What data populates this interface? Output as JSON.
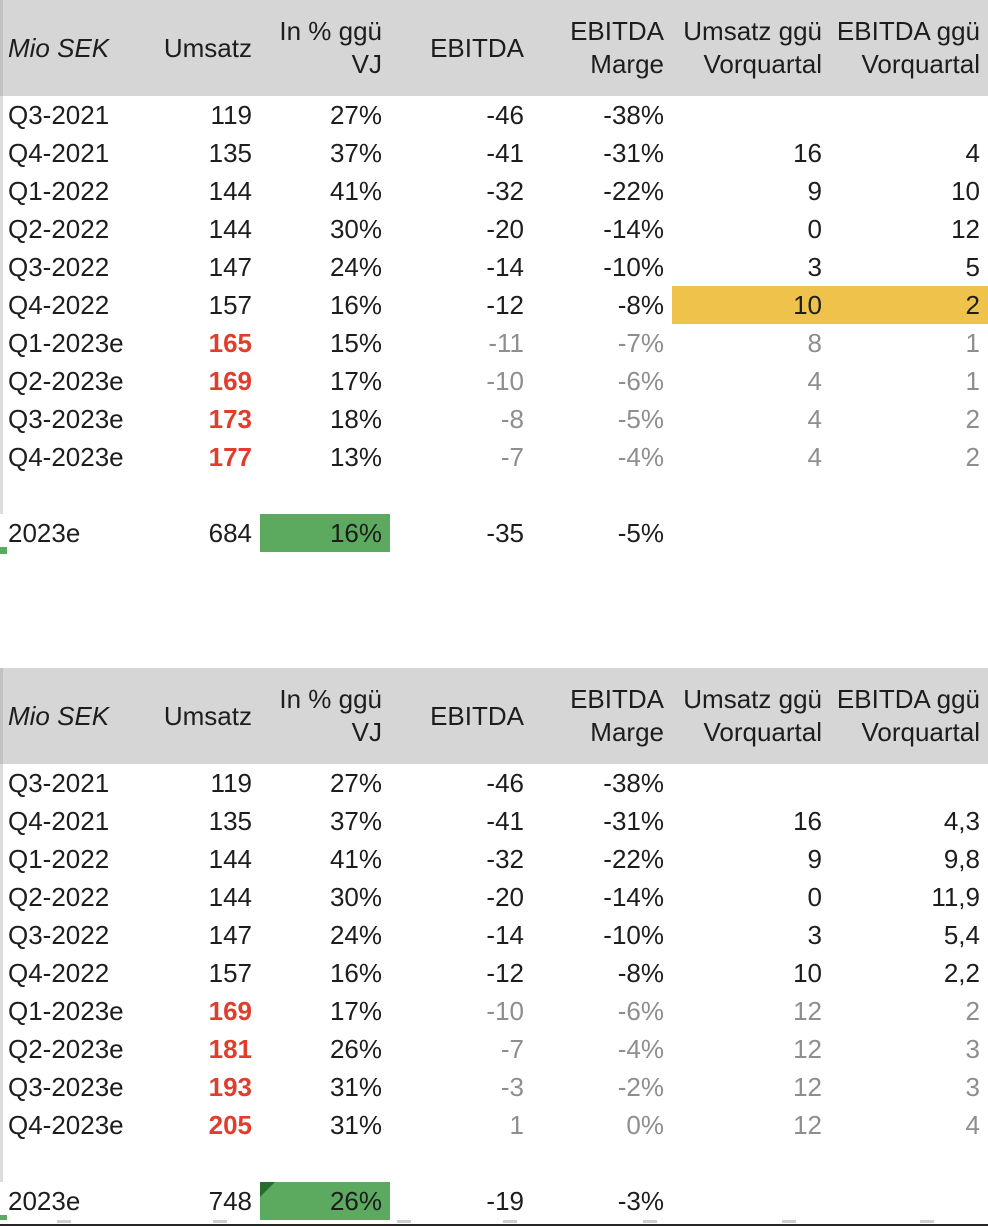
{
  "colors": {
    "header_bg": "#d6d6d6",
    "text": "#1d1d1d",
    "forecast_red": "#e03e2d",
    "forecast_gray": "#8e8e8e",
    "highlight_yellow": "#efc24b",
    "highlight_green": "#5baa5f",
    "triangle_dark_green": "#276b2e"
  },
  "header": {
    "columns": [
      {
        "id": "mio-sek",
        "lines": [
          "Mio SEK"
        ],
        "italic": true
      },
      {
        "id": "umsatz",
        "lines": [
          "Umsatz"
        ]
      },
      {
        "id": "pct-vj",
        "lines": [
          "In % ggü",
          "VJ"
        ]
      },
      {
        "id": "ebitda",
        "lines": [
          "EBITDA"
        ]
      },
      {
        "id": "ebitda-marge",
        "lines": [
          "EBITDA",
          "Marge"
        ]
      },
      {
        "id": "umsatz-qoq",
        "lines": [
          "Umsatz ggü",
          "Vorquartal"
        ]
      },
      {
        "id": "ebitda-qoq",
        "lines": [
          "EBITDA ggü",
          "Vorquartal"
        ]
      }
    ]
  },
  "tables": [
    {
      "rows": [
        {
          "cells": [
            "Q3-2021",
            "119",
            "27%",
            "-46",
            "-38%",
            "",
            ""
          ],
          "styles": [
            "",
            "",
            "",
            "",
            "",
            "",
            ""
          ]
        },
        {
          "cells": [
            "Q4-2021",
            "135",
            "37%",
            "-41",
            "-31%",
            "16",
            "4"
          ],
          "styles": [
            "",
            "",
            "",
            "",
            "",
            "",
            ""
          ]
        },
        {
          "cells": [
            "Q1-2022",
            "144",
            "41%",
            "-32",
            "-22%",
            "9",
            "10"
          ],
          "styles": [
            "",
            "",
            "",
            "",
            "",
            "",
            ""
          ]
        },
        {
          "cells": [
            "Q2-2022",
            "144",
            "30%",
            "-20",
            "-14%",
            "0",
            "12"
          ],
          "styles": [
            "",
            "",
            "",
            "",
            "",
            "",
            ""
          ]
        },
        {
          "cells": [
            "Q3-2022",
            "147",
            "24%",
            "-14",
            "-10%",
            "3",
            "5"
          ],
          "styles": [
            "",
            "",
            "",
            "",
            "",
            "",
            ""
          ]
        },
        {
          "cells": [
            "Q4-2022",
            "157",
            "16%",
            "-12",
            "-8%",
            "10",
            "2"
          ],
          "styles": [
            "",
            "",
            "",
            "",
            "",
            "yellow",
            "yellow"
          ]
        },
        {
          "cells": [
            "Q1-2023e",
            "165",
            "15%",
            "-11",
            "-7%",
            "8",
            "1"
          ],
          "styles": [
            "",
            "red",
            "",
            "gray",
            "gray",
            "gray",
            "gray"
          ]
        },
        {
          "cells": [
            "Q2-2023e",
            "169",
            "17%",
            "-10",
            "-6%",
            "4",
            "1"
          ],
          "styles": [
            "",
            "red",
            "",
            "gray",
            "gray",
            "gray",
            "gray"
          ]
        },
        {
          "cells": [
            "Q3-2023e",
            "173",
            "18%",
            "-8",
            "-5%",
            "4",
            "2"
          ],
          "styles": [
            "",
            "red",
            "",
            "gray",
            "gray",
            "gray",
            "gray"
          ]
        },
        {
          "cells": [
            "Q4-2023e",
            "177",
            "13%",
            "-7",
            "-4%",
            "4",
            "2"
          ],
          "styles": [
            "",
            "red",
            "",
            "gray",
            "gray",
            "gray",
            "gray"
          ]
        }
      ],
      "total": {
        "cells": [
          "2023e",
          "684",
          "16%",
          "-35",
          "-5%",
          "",
          ""
        ],
        "styles": [
          "",
          "",
          "green",
          "",
          "",
          "",
          ""
        ]
      }
    },
    {
      "rows": [
        {
          "cells": [
            "Q3-2021",
            "119",
            "27%",
            "-46",
            "-38%",
            "",
            ""
          ],
          "styles": [
            "",
            "",
            "",
            "",
            "",
            "",
            ""
          ]
        },
        {
          "cells": [
            "Q4-2021",
            "135",
            "37%",
            "-41",
            "-31%",
            "16",
            "4,3"
          ],
          "styles": [
            "",
            "",
            "",
            "",
            "",
            "",
            ""
          ]
        },
        {
          "cells": [
            "Q1-2022",
            "144",
            "41%",
            "-32",
            "-22%",
            "9",
            "9,8"
          ],
          "styles": [
            "",
            "",
            "",
            "",
            "",
            "",
            ""
          ]
        },
        {
          "cells": [
            "Q2-2022",
            "144",
            "30%",
            "-20",
            "-14%",
            "0",
            "11,9"
          ],
          "styles": [
            "",
            "",
            "",
            "",
            "",
            "",
            ""
          ]
        },
        {
          "cells": [
            "Q3-2022",
            "147",
            "24%",
            "-14",
            "-10%",
            "3",
            "5,4"
          ],
          "styles": [
            "",
            "",
            "",
            "",
            "",
            "",
            ""
          ]
        },
        {
          "cells": [
            "Q4-2022",
            "157",
            "16%",
            "-12",
            "-8%",
            "10",
            "2,2"
          ],
          "styles": [
            "",
            "",
            "",
            "",
            "",
            "",
            ""
          ]
        },
        {
          "cells": [
            "Q1-2023e",
            "169",
            "17%",
            "-10",
            "-6%",
            "12",
            "2"
          ],
          "styles": [
            "",
            "red",
            "",
            "gray",
            "gray",
            "gray",
            "gray"
          ]
        },
        {
          "cells": [
            "Q2-2023e",
            "181",
            "26%",
            "-7",
            "-4%",
            "12",
            "3"
          ],
          "styles": [
            "",
            "red",
            "",
            "gray",
            "gray",
            "gray",
            "gray"
          ]
        },
        {
          "cells": [
            "Q3-2023e",
            "193",
            "31%",
            "-3",
            "-2%",
            "12",
            "3"
          ],
          "styles": [
            "",
            "red",
            "",
            "gray",
            "gray",
            "gray",
            "gray"
          ]
        },
        {
          "cells": [
            "Q4-2023e",
            "205",
            "31%",
            "1",
            "0%",
            "12",
            "4"
          ],
          "styles": [
            "",
            "red",
            "",
            "gray",
            "gray",
            "gray",
            "gray"
          ]
        }
      ],
      "total": {
        "cells": [
          "2023e",
          "748",
          "26%",
          "-19",
          "-3%",
          "",
          ""
        ],
        "styles": [
          "",
          "",
          "green-triangle",
          "",
          "",
          "",
          ""
        ]
      }
    }
  ]
}
